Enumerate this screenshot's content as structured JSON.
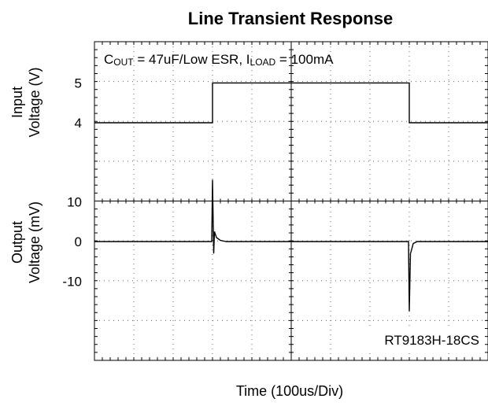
{
  "chart_data": {
    "type": "line",
    "title": "Line Transient Response",
    "xlabel": "Time  (100us/Div)",
    "x_divisions": 10,
    "y_divisions": 8,
    "grid": true,
    "annotation_conditions": {
      "c_prefix": "C",
      "c_sub": "OUT",
      "c_value": " = 47uF/Low ESR, ",
      "i_prefix": "I",
      "i_sub": "LOAD",
      "i_value": " = 100mA"
    },
    "part_number": "RT9183H-18CS",
    "panels": [
      {
        "name": "input",
        "ylabel_line1": "Input",
        "ylabel_line2": "Voltage (V)",
        "yticks": [
          {
            "value": 5,
            "label": "5"
          },
          {
            "value": 4,
            "label": "4"
          }
        ],
        "unit": "V",
        "series": {
          "x_div": [
            0,
            3.0,
            3.0,
            8.0,
            8.0,
            10
          ],
          "values": [
            4,
            4,
            5,
            5,
            4,
            4
          ]
        }
      },
      {
        "name": "output",
        "ylabel_line1": "Output",
        "ylabel_line2": "Voltage (mV)",
        "yticks": [
          {
            "value": 10,
            "label": "10"
          },
          {
            "value": 0,
            "label": "0"
          },
          {
            "value": -10,
            "label": "-10"
          }
        ],
        "unit": "mV",
        "series": {
          "x_div": [
            0,
            2.98,
            3.0,
            3.03,
            3.05,
            3.1,
            3.2,
            3.35,
            7.98,
            8.0,
            8.03,
            8.06,
            8.1,
            8.2,
            10
          ],
          "values": [
            0,
            0,
            15.5,
            -3,
            2.5,
            1,
            0.3,
            0,
            0,
            -17.5,
            -3,
            -2,
            -0.5,
            0,
            0
          ]
        }
      }
    ]
  }
}
